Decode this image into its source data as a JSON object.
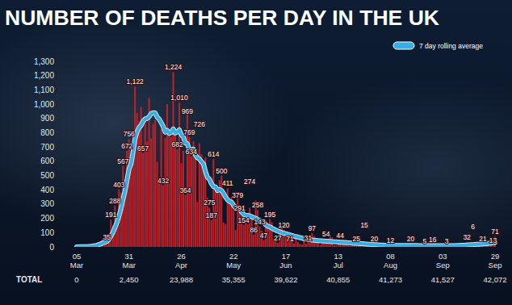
{
  "chart_data": {
    "type": "bar",
    "title": "NUMBER OF DEATHS PER DAY IN THE UK",
    "categories": [
      "05 Mar",
      null,
      null,
      null,
      null,
      null,
      null,
      null,
      null,
      null,
      null,
      null,
      null,
      null,
      null,
      null,
      null,
      null,
      null,
      null,
      null,
      null,
      null,
      null,
      null,
      null,
      "31 Mar",
      null,
      null,
      null,
      null,
      null,
      null,
      null,
      null,
      null,
      null,
      null,
      null,
      null,
      null,
      null,
      null,
      null,
      null,
      null,
      null,
      null,
      null,
      null,
      null,
      null,
      "26 Apr",
      null,
      null,
      null,
      null,
      null,
      null,
      null,
      null,
      null,
      null,
      null,
      null,
      null,
      null,
      null,
      null,
      null,
      null,
      null,
      null,
      null,
      null,
      null,
      null,
      null,
      "22 May",
      null,
      null,
      null,
      null,
      null,
      null,
      null,
      null,
      null,
      null,
      null,
      null,
      null,
      null,
      null,
      null,
      null,
      null,
      null,
      null,
      null,
      null,
      null,
      null,
      null,
      "17 Jun",
      null,
      null,
      null,
      null,
      null,
      null,
      null,
      null,
      null,
      null,
      null,
      null,
      null,
      null,
      null,
      null,
      null,
      null,
      null,
      null,
      null,
      null,
      null,
      null,
      null,
      "13 Jul",
      null,
      null,
      null,
      null,
      null,
      null,
      null,
      null,
      null,
      null,
      null,
      null,
      null,
      null,
      null,
      null,
      null,
      null,
      null,
      null,
      null,
      null,
      null,
      null,
      null,
      "08 Aug",
      null,
      null,
      null,
      null,
      null,
      null,
      null,
      null,
      null,
      null,
      null,
      null,
      null,
      null,
      null,
      null,
      null,
      null,
      null,
      null,
      null,
      null,
      null,
      null,
      null,
      "03 Sep",
      null,
      null,
      null,
      null,
      null,
      null,
      null,
      null,
      null,
      null,
      null,
      null,
      null,
      null,
      null,
      null,
      null,
      null,
      null,
      null,
      null,
      null,
      null,
      null,
      null,
      "29 Sep"
    ],
    "values": [
      0,
      1,
      0,
      2,
      3,
      2,
      8,
      10,
      14,
      20,
      16,
      33,
      40,
      56,
      48,
      35,
      74,
      191,
      150,
      288,
      210,
      403,
      381,
      567,
      434,
      672,
      756,
      569,
      684,
      1122,
      938,
      881,
      980,
      657,
      917,
      737,
      1044,
      761,
      862,
      888,
      596,
      449,
      828,
      432,
      763,
      1000,
      823,
      768,
      1224,
      813,
      682,
      1010,
      586,
      674,
      364,
      969,
      769,
      634,
      739,
      621,
      315,
      726,
      649,
      539,
      626,
      346,
      275,
      187,
      614,
      428,
      384,
      468,
      500,
      170,
      160,
      411,
      338,
      351,
      282,
      118,
      379,
      291,
      213,
      154,
      225,
      160,
      274,
      215,
      86,
      324,
      258,
      143,
      113,
      47,
      176,
      151,
      195,
      173,
      55,
      77,
      27,
      133,
      141,
      120,
      89,
      36,
      71,
      43,
      25,
      84,
      35,
      22,
      15,
      67,
      22,
      31,
      30,
      97,
      76,
      63,
      48,
      11,
      44,
      29,
      54,
      48,
      85,
      66,
      12,
      11,
      21,
      44,
      36,
      38,
      49,
      11,
      8,
      10,
      37,
      25,
      38,
      40,
      18,
      15,
      19,
      16,
      9,
      8,
      20,
      8,
      2,
      5,
      18,
      5,
      18,
      6,
      12,
      18,
      11,
      18,
      3,
      14,
      13,
      18,
      6,
      4,
      20,
      16,
      6,
      18,
      2,
      10,
      9,
      5,
      12,
      9,
      2,
      16,
      6,
      10,
      12,
      1,
      2,
      10,
      3,
      8,
      14,
      8,
      14,
      9,
      12,
      5,
      3,
      20,
      32,
      9,
      11,
      6,
      27,
      21,
      27,
      18,
      21,
      40,
      17,
      34,
      37,
      13,
      71
    ],
    "value_labels": [
      null,
      null,
      null,
      null,
      null,
      null,
      null,
      null,
      null,
      null,
      null,
      null,
      null,
      null,
      null,
      "35",
      null,
      "191",
      null,
      "288",
      null,
      "403",
      null,
      "567",
      null,
      "672",
      "756",
      null,
      null,
      "1,122",
      null,
      null,
      null,
      "657",
      null,
      null,
      null,
      null,
      null,
      null,
      null,
      null,
      null,
      "432",
      null,
      null,
      null,
      null,
      "1,224",
      null,
      "682",
      "1,010",
      null,
      null,
      "364",
      "969",
      "769",
      "634",
      null,
      null,
      null,
      "726",
      null,
      null,
      null,
      null,
      "275",
      "187",
      "614",
      null,
      null,
      null,
      "500",
      null,
      null,
      "411",
      null,
      null,
      null,
      null,
      "379",
      "291",
      null,
      "154",
      null,
      null,
      "274",
      null,
      "86",
      null,
      "258",
      "143",
      null,
      "47",
      null,
      null,
      "195",
      null,
      null,
      null,
      "27",
      null,
      null,
      "120",
      null,
      null,
      "71",
      null,
      null,
      null,
      null,
      null,
      null,
      null,
      null,
      "31",
      null,
      "97",
      null,
      null,
      null,
      null,
      null,
      null,
      "54",
      null,
      null,
      null,
      null,
      null,
      null,
      "44",
      null,
      null,
      null,
      null,
      null,
      null,
      null,
      "25",
      null,
      null,
      null,
      "15",
      null,
      null,
      null,
      null,
      "20",
      null,
      null,
      null,
      null,
      null,
      null,
      null,
      "12",
      null,
      null,
      null,
      null,
      null,
      null,
      null,
      null,
      null,
      "20",
      null,
      null,
      null,
      null,
      null,
      null,
      "5",
      null,
      null,
      null,
      "16",
      null,
      null,
      null,
      null,
      null,
      null,
      "3",
      null,
      null,
      null,
      null,
      null,
      null,
      null,
      null,
      null,
      "32",
      null,
      null,
      "6",
      null,
      null,
      null,
      null,
      "21",
      null,
      null,
      null,
      null,
      "13",
      "71"
    ],
    "color": "#b8222a",
    "data_labels": true,
    "series": [
      {
        "name": "7 day rolling average",
        "type": "line",
        "color": "#36aee6",
        "values": [
          0,
          0,
          1,
          1,
          2,
          2,
          3,
          4,
          6,
          8,
          11,
          16,
          21,
          28,
          33,
          38,
          55,
          76,
          101,
          135,
          171,
          216,
          267,
          333,
          391,
          469,
          546,
          581,
          666,
          760,
          805,
          836,
          851,
          880,
          896,
          900,
          912,
          933,
          940,
          938,
          909,
          895,
          871,
          843,
          804,
          816,
          795,
          802,
          826,
          798,
          806,
          820,
          785,
          770,
          727,
          723,
          681,
          678,
          685,
          645,
          625,
          616,
          597,
          582,
          528,
          488,
          474,
          442,
          423,
          420,
          395,
          402,
          395,
          376,
          348,
          330,
          318,
          313,
          290,
          277,
          268,
          264,
          245,
          228,
          222,
          220,
          218,
          212,
          205,
          200,
          192,
          184,
          178,
          170,
          155,
          145,
          140,
          132,
          124,
          117,
          110,
          105,
          100,
          96,
          92,
          88,
          84,
          80,
          76,
          72,
          69,
          65,
          62,
          58,
          55,
          52,
          50,
          48,
          46,
          45,
          44,
          43,
          42,
          41,
          40,
          39,
          38,
          37,
          36,
          35,
          34,
          33,
          32,
          31,
          30,
          29,
          28,
          27,
          26,
          25,
          24,
          23,
          22,
          21,
          20,
          19,
          18,
          17,
          16,
          15,
          14,
          13,
          13,
          12,
          12,
          11,
          11,
          11,
          10,
          10,
          10,
          10,
          10,
          10,
          10,
          10,
          10,
          10,
          10,
          10,
          9,
          9,
          9,
          9,
          9,
          9,
          9,
          9,
          9,
          8,
          8,
          8,
          8,
          8,
          8,
          8,
          9,
          9,
          9,
          10,
          10,
          11,
          11,
          12,
          13,
          14,
          15,
          16,
          17,
          18,
          19,
          20,
          21,
          22,
          23,
          25,
          27,
          29,
          31
        ]
      }
    ],
    "ylim": [
      0,
      1300
    ],
    "yticks": [
      0,
      100,
      200,
      300,
      400,
      500,
      600,
      700,
      800,
      900,
      {
        "value": 1000,
        "label": "1,000"
      },
      {
        "value": 1100,
        "label": "1,100"
      },
      {
        "value": 1200,
        "label": "1,200"
      },
      {
        "value": 1300,
        "label": "1,300"
      }
    ],
    "grid": false,
    "legend": "upper right",
    "total_label": "TOTAL",
    "totals": [
      0,
      2450,
      23988,
      35355,
      39622,
      40855,
      41273,
      41527,
      42072
    ],
    "total_labels": [
      "0",
      "2,450",
      "23,988",
      "35,355",
      "39,622",
      "40,855",
      "41,273",
      "41,527",
      "42,072"
    ]
  }
}
